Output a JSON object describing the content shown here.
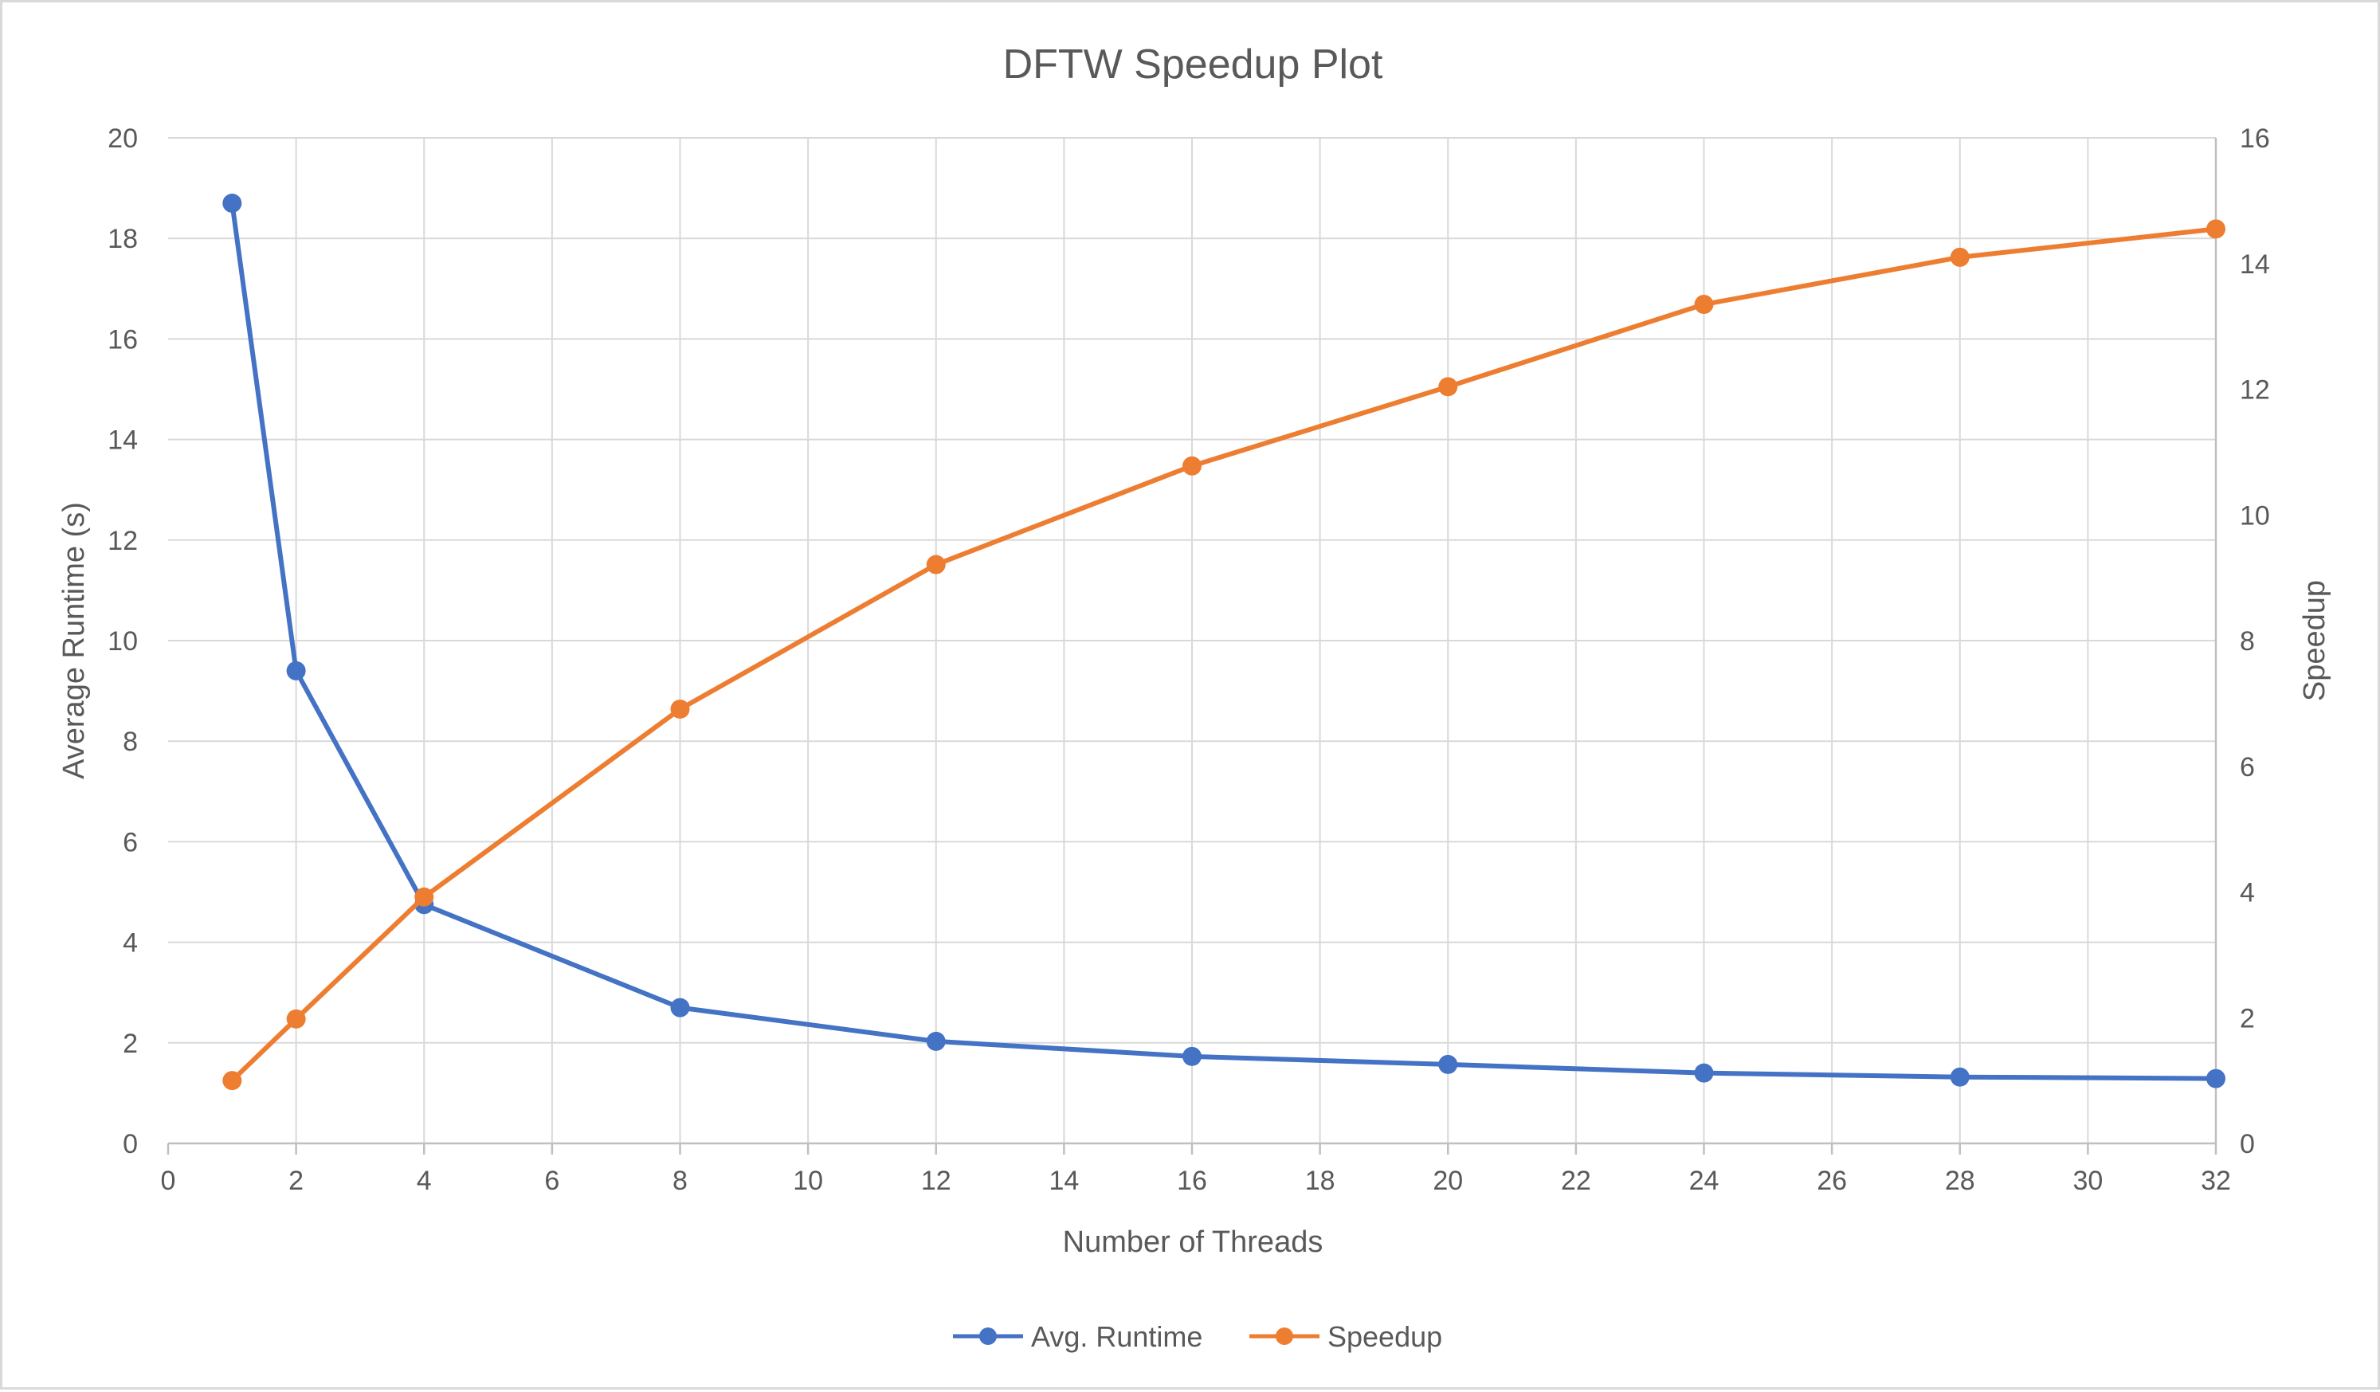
{
  "chart_data": {
    "type": "line",
    "title": "DFTW Speedup Plot",
    "xlabel": "Number of Threads",
    "ylabel": "Average Runtime (s)",
    "y2label": "Speedup",
    "xlim": [
      0,
      32
    ],
    "ylim": [
      0,
      20
    ],
    "y2lim": [
      0,
      16
    ],
    "x_ticks": [
      "0",
      "2",
      "4",
      "6",
      "8",
      "10",
      "12",
      "14",
      "16",
      "18",
      "20",
      "22",
      "24",
      "26",
      "28",
      "30",
      "32"
    ],
    "y_ticks": [
      "0",
      "2",
      "4",
      "6",
      "8",
      "10",
      "12",
      "14",
      "16",
      "18",
      "20"
    ],
    "y2_ticks": [
      "0",
      "2",
      "4",
      "6",
      "8",
      "10",
      "12",
      "14",
      "16"
    ],
    "grid": true,
    "legend_position": "bottom",
    "x": [
      1,
      2,
      4,
      8,
      12,
      16,
      20,
      24,
      28,
      32
    ],
    "series": [
      {
        "name": "Avg. Runtime",
        "axis": "left",
        "color": "#4472c4",
        "values": [
          18.7,
          9.4,
          4.75,
          2.7,
          2.03,
          1.73,
          1.57,
          1.4,
          1.32,
          1.29
        ]
      },
      {
        "name": "Speedup",
        "axis": "right",
        "color": "#ed7d31",
        "values": [
          1.0,
          1.98,
          3.92,
          6.91,
          9.21,
          10.78,
          12.04,
          13.35,
          14.1,
          14.55
        ]
      }
    ]
  }
}
